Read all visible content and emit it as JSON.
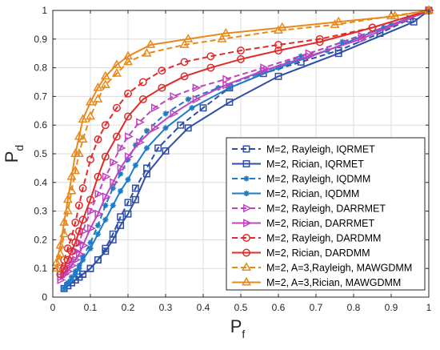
{
  "chart_data": {
    "type": "line",
    "title": "",
    "xlabel": "P",
    "xlabel_sub": "f",
    "ylabel": "P",
    "ylabel_sub": "d",
    "xlim": [
      0,
      1
    ],
    "ylim": [
      0,
      1
    ],
    "xticks": [
      "0",
      "0.1",
      "0.2",
      "0.3",
      "0.4",
      "0.5",
      "0.6",
      "0.7",
      "0.8",
      "0.9",
      "1"
    ],
    "yticks": [
      "0",
      "0.1",
      "0.2",
      "0.3",
      "0.4",
      "0.5",
      "0.6",
      "0.7",
      "0.8",
      "0.9",
      "1"
    ],
    "grid": true,
    "legend_position": "lower-right",
    "series": [
      {
        "name": "M=2, Rayleigh, IQRMET",
        "color": "#2e4ea8",
        "dash": true,
        "marker": "square",
        "x": [
          0.03,
          0.04,
          0.05,
          0.06,
          0.07,
          0.08,
          0.1,
          0.12,
          0.14,
          0.16,
          0.18,
          0.2,
          0.22,
          0.25,
          0.28,
          0.34,
          0.4,
          0.47,
          0.56,
          0.66,
          0.76,
          0.87,
          0.95,
          1.0
        ],
        "y": [
          0.03,
          0.04,
          0.05,
          0.06,
          0.07,
          0.08,
          0.1,
          0.13,
          0.17,
          0.22,
          0.28,
          0.33,
          0.38,
          0.45,
          0.52,
          0.6,
          0.66,
          0.73,
          0.78,
          0.82,
          0.86,
          0.92,
          0.97,
          1.0
        ]
      },
      {
        "name": "M=2, Rician, IQRMET",
        "color": "#2e4ea8",
        "dash": false,
        "marker": "square",
        "x": [
          0.04,
          0.05,
          0.06,
          0.07,
          0.08,
          0.1,
          0.12,
          0.14,
          0.16,
          0.18,
          0.2,
          0.22,
          0.25,
          0.3,
          0.36,
          0.47,
          0.6,
          0.76,
          0.96,
          1.0
        ],
        "y": [
          0.04,
          0.05,
          0.06,
          0.07,
          0.08,
          0.1,
          0.13,
          0.16,
          0.2,
          0.25,
          0.29,
          0.34,
          0.43,
          0.51,
          0.59,
          0.68,
          0.77,
          0.85,
          0.96,
          1.0
        ]
      },
      {
        "name": "M=2, Rayleigh, IQDMM",
        "color": "#1f7bc4",
        "dash": true,
        "marker": "asterisk",
        "x": [
          0.03,
          0.04,
          0.05,
          0.06,
          0.07,
          0.08,
          0.1,
          0.12,
          0.14,
          0.16,
          0.18,
          0.2,
          0.22,
          0.25,
          0.3,
          0.36,
          0.44,
          0.55,
          0.66,
          0.77,
          0.9,
          1.0
        ],
        "y": [
          0.03,
          0.05,
          0.07,
          0.09,
          0.11,
          0.14,
          0.19,
          0.25,
          0.32,
          0.38,
          0.43,
          0.48,
          0.53,
          0.58,
          0.64,
          0.69,
          0.73,
          0.78,
          0.84,
          0.89,
          0.95,
          1.0
        ]
      },
      {
        "name": "M=2, Rician, IQDMM",
        "color": "#1f7bc4",
        "dash": false,
        "marker": "asterisk",
        "x": [
          0.03,
          0.04,
          0.05,
          0.06,
          0.07,
          0.08,
          0.1,
          0.12,
          0.14,
          0.16,
          0.18,
          0.2,
          0.22,
          0.25,
          0.3,
          0.37,
          0.47,
          0.6,
          0.73,
          0.88,
          1.0
        ],
        "y": [
          0.03,
          0.05,
          0.06,
          0.08,
          0.1,
          0.13,
          0.17,
          0.22,
          0.27,
          0.32,
          0.37,
          0.41,
          0.46,
          0.52,
          0.59,
          0.66,
          0.73,
          0.8,
          0.86,
          0.94,
          1.0
        ]
      },
      {
        "name": "M=2, Rayleigh, DARRMET",
        "color": "#c044c0",
        "dash": true,
        "marker": "tri-right",
        "x": [
          0.02,
          0.03,
          0.04,
          0.05,
          0.06,
          0.07,
          0.08,
          0.1,
          0.12,
          0.14,
          0.16,
          0.18,
          0.2,
          0.23,
          0.27,
          0.32,
          0.38,
          0.46,
          0.56,
          0.68,
          0.82,
          1.0
        ],
        "y": [
          0.07,
          0.09,
          0.11,
          0.13,
          0.16,
          0.19,
          0.23,
          0.3,
          0.36,
          0.42,
          0.47,
          0.52,
          0.56,
          0.61,
          0.66,
          0.7,
          0.73,
          0.76,
          0.8,
          0.85,
          0.91,
          1.0
        ]
      },
      {
        "name": "M=2, Rician, DARRMET",
        "color": "#c044c0",
        "dash": false,
        "marker": "tri-right",
        "x": [
          0.02,
          0.03,
          0.04,
          0.05,
          0.06,
          0.07,
          0.08,
          0.1,
          0.12,
          0.14,
          0.16,
          0.18,
          0.2,
          0.23,
          0.27,
          0.32,
          0.38,
          0.46,
          0.56,
          0.68,
          0.82,
          1.0
        ],
        "y": [
          0.06,
          0.08,
          0.09,
          0.11,
          0.13,
          0.15,
          0.18,
          0.24,
          0.29,
          0.35,
          0.4,
          0.45,
          0.49,
          0.54,
          0.59,
          0.64,
          0.69,
          0.74,
          0.79,
          0.84,
          0.9,
          1.0
        ]
      },
      {
        "name": "M=2, Rayleigh, DARDMM",
        "color": "#e02b2b",
        "dash": true,
        "marker": "circle",
        "x": [
          0.02,
          0.03,
          0.04,
          0.05,
          0.06,
          0.07,
          0.08,
          0.1,
          0.12,
          0.14,
          0.17,
          0.2,
          0.24,
          0.29,
          0.35,
          0.42,
          0.5,
          0.6,
          0.71,
          0.85,
          1.0
        ],
        "y": [
          0.1,
          0.13,
          0.17,
          0.21,
          0.26,
          0.32,
          0.38,
          0.48,
          0.55,
          0.6,
          0.66,
          0.71,
          0.75,
          0.79,
          0.82,
          0.84,
          0.86,
          0.88,
          0.9,
          0.94,
          1.0
        ]
      },
      {
        "name": "M=2, Rician, DARDMM",
        "color": "#e02b2b",
        "dash": false,
        "marker": "circle",
        "x": [
          0.02,
          0.03,
          0.04,
          0.05,
          0.06,
          0.07,
          0.08,
          0.1,
          0.12,
          0.14,
          0.17,
          0.2,
          0.24,
          0.29,
          0.35,
          0.42,
          0.5,
          0.6,
          0.71,
          0.85,
          1.0
        ],
        "y": [
          0.08,
          0.1,
          0.13,
          0.16,
          0.19,
          0.23,
          0.27,
          0.34,
          0.42,
          0.49,
          0.56,
          0.63,
          0.69,
          0.73,
          0.77,
          0.8,
          0.83,
          0.86,
          0.89,
          0.94,
          1.0
        ]
      },
      {
        "name": "M=2, A=3,Rayleigh, MAWGDMM",
        "color": "#e8891c",
        "dash": true,
        "marker": "triangle",
        "x": [
          0.01,
          0.02,
          0.03,
          0.04,
          0.05,
          0.06,
          0.07,
          0.08,
          0.1,
          0.12,
          0.14,
          0.17,
          0.2,
          0.25,
          0.35,
          0.45,
          0.6,
          0.75,
          0.9,
          1.0
        ],
        "y": [
          0.1,
          0.15,
          0.22,
          0.3,
          0.37,
          0.44,
          0.5,
          0.55,
          0.63,
          0.69,
          0.74,
          0.78,
          0.82,
          0.85,
          0.88,
          0.9,
          0.93,
          0.95,
          0.98,
          1.0
        ]
      },
      {
        "name": "M=2, A=3,Rician, MAWGDMM",
        "color": "#e8891c",
        "dash": false,
        "marker": "triangle",
        "x": [
          0.01,
          0.02,
          0.03,
          0.04,
          0.05,
          0.06,
          0.07,
          0.08,
          0.1,
          0.12,
          0.14,
          0.17,
          0.2,
          0.26,
          0.36,
          0.46,
          0.61,
          0.76,
          0.91,
          1.0
        ],
        "y": [
          0.12,
          0.18,
          0.26,
          0.34,
          0.42,
          0.5,
          0.56,
          0.62,
          0.68,
          0.73,
          0.77,
          0.81,
          0.84,
          0.88,
          0.9,
          0.92,
          0.94,
          0.96,
          0.98,
          1.0
        ]
      }
    ]
  }
}
